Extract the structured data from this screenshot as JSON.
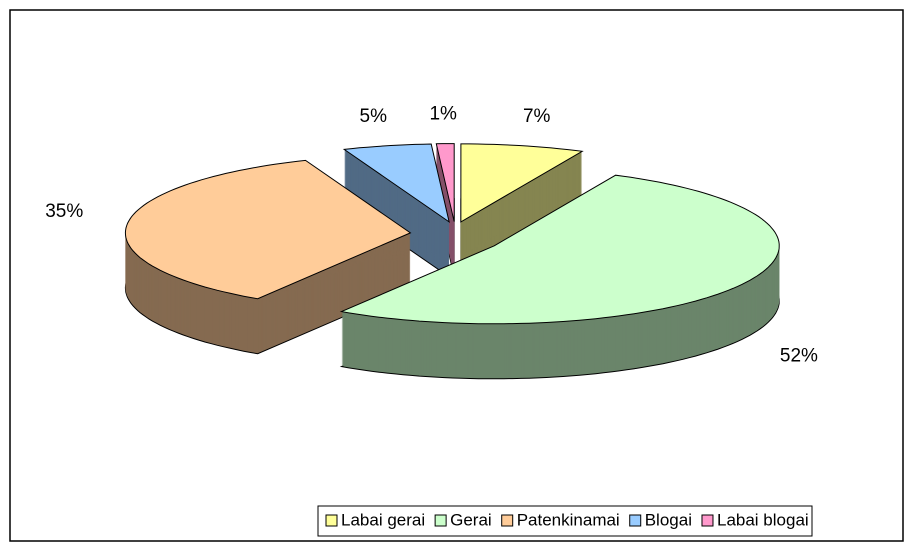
{
  "chart_data": {
    "type": "pie3d",
    "categories": [
      "Labai gerai",
      "Gerai",
      "Patenkinamai",
      "Blogai",
      "Labai blogai"
    ],
    "values": [
      7,
      52,
      35,
      5,
      1
    ],
    "value_labels": [
      "7%",
      "52%",
      "35%",
      "5%",
      "1%"
    ],
    "colors": [
      "#ffff99",
      "#ccffcc",
      "#ffcc99",
      "#99ccff",
      "#ff99cc"
    ],
    "legend": "bottom"
  }
}
